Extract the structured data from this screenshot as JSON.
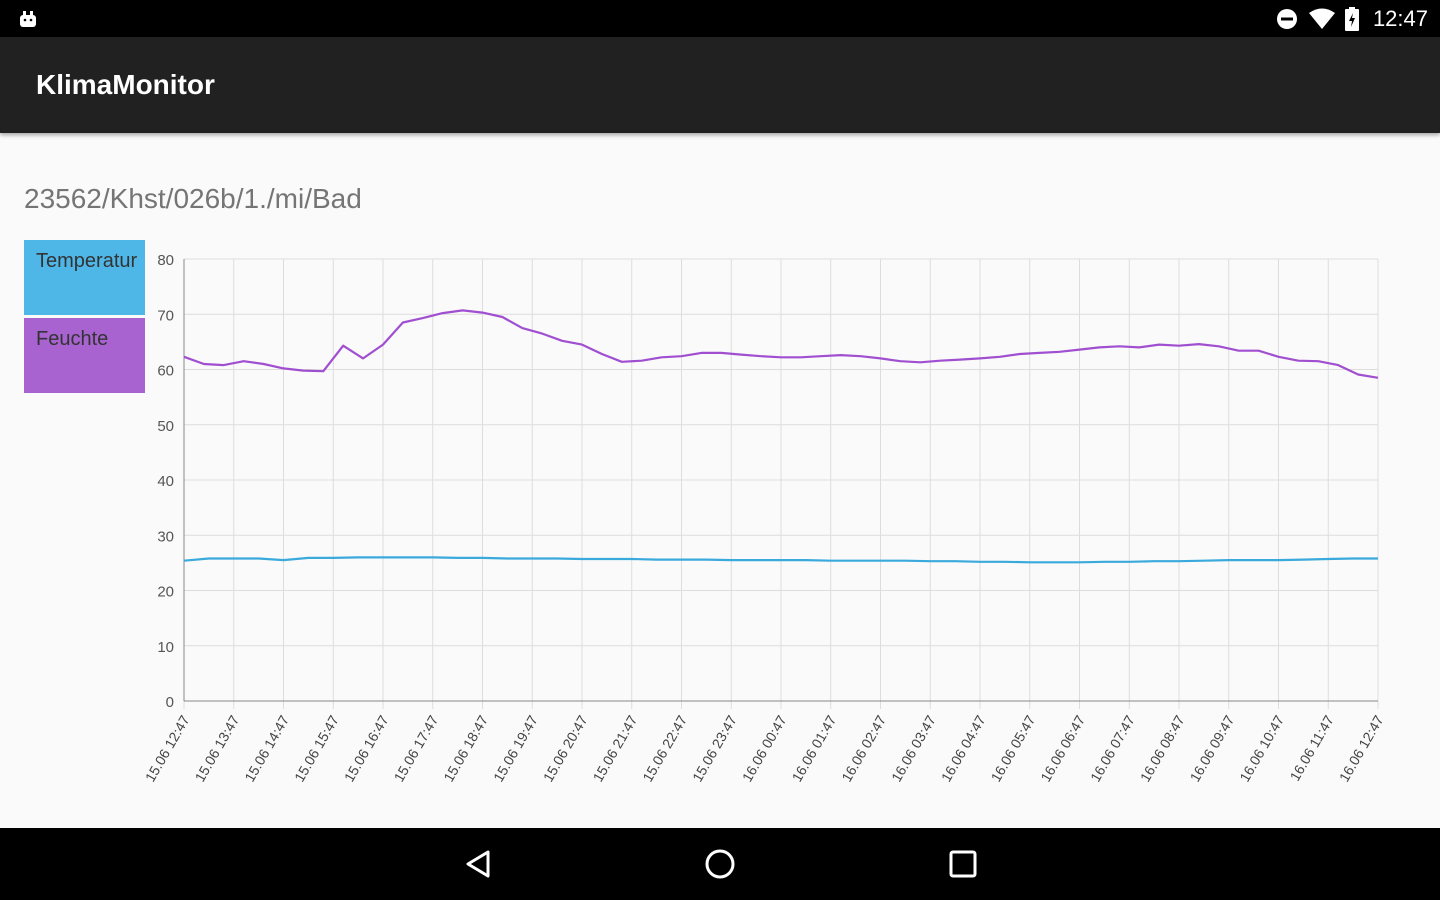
{
  "status_bar": {
    "time": "12:47",
    "left_icon": "android-notification-icon",
    "icons": [
      "do-not-disturb-icon",
      "wifi-icon",
      "battery-icon"
    ]
  },
  "app_bar": {
    "title": "KlimaMonitor"
  },
  "sensor": {
    "path": "23562/Khst/026b/1./mi/Bad"
  },
  "legend": [
    {
      "label": "Temperatur",
      "color": "#4fb7e8"
    },
    {
      "label": "Feuchte",
      "color": "#a863d1"
    }
  ],
  "chart_data": {
    "type": "line",
    "ylim": [
      0,
      80
    ],
    "y_ticks": [
      0,
      10,
      20,
      30,
      40,
      50,
      60,
      70,
      80
    ],
    "x_tick_labels": [
      "15.06 12:47",
      "15.06 13:47",
      "15.06 14:47",
      "15.06 15:47",
      "15.06 16:47",
      "15.06 17:47",
      "15.06 18:47",
      "15.06 19:47",
      "15.06 20:47",
      "15.06 21:47",
      "15.06 22:47",
      "15.06 23:47",
      "16.06 00:47",
      "16.06 01:47",
      "16.06 02:47",
      "16.06 03:47",
      "16.06 04:47",
      "16.06 05:47",
      "16.06 06:47",
      "16.06 07:47",
      "16.06 08:47",
      "16.06 09:47",
      "16.06 10:47",
      "16.06 11:47",
      "16.06 12:47"
    ],
    "grid": true,
    "legend_position": "left",
    "series": [
      {
        "name": "Temperatur",
        "color": "#3aa9dc",
        "values": [
          25.4,
          25.8,
          25.8,
          25.8,
          25.5,
          25.9,
          25.9,
          26.0,
          26.0,
          26.0,
          26.0,
          25.9,
          25.9,
          25.8,
          25.8,
          25.8,
          25.7,
          25.7,
          25.7,
          25.6,
          25.6,
          25.6,
          25.5,
          25.5,
          25.5,
          25.5,
          25.4,
          25.4,
          25.4,
          25.4,
          25.3,
          25.3,
          25.2,
          25.2,
          25.1,
          25.1,
          25.1,
          25.2,
          25.2,
          25.3,
          25.3,
          25.4,
          25.5,
          25.5,
          25.5,
          25.6,
          25.7,
          25.8,
          25.8
        ]
      },
      {
        "name": "Feuchte",
        "color": "#a04fd0",
        "values": [
          62.3,
          61.0,
          60.8,
          61.5,
          61.0,
          60.2,
          59.8,
          59.7,
          64.3,
          62.0,
          64.5,
          68.5,
          69.3,
          70.2,
          70.7,
          70.3,
          69.5,
          67.5,
          66.5,
          65.2,
          64.5,
          62.8,
          61.4,
          61.6,
          62.2,
          62.4,
          63.0,
          63.0,
          62.7,
          62.4,
          62.2,
          62.2,
          62.4,
          62.6,
          62.4,
          62.0,
          61.5,
          61.3,
          61.6,
          61.8,
          62.0,
          62.3,
          62.8,
          63.0,
          63.2,
          63.6,
          64.0,
          64.2,
          64.0,
          64.5,
          64.3,
          64.6,
          64.2,
          63.4,
          63.4,
          62.3,
          61.6,
          61.5,
          60.8,
          59.1,
          58.5
        ]
      }
    ]
  }
}
